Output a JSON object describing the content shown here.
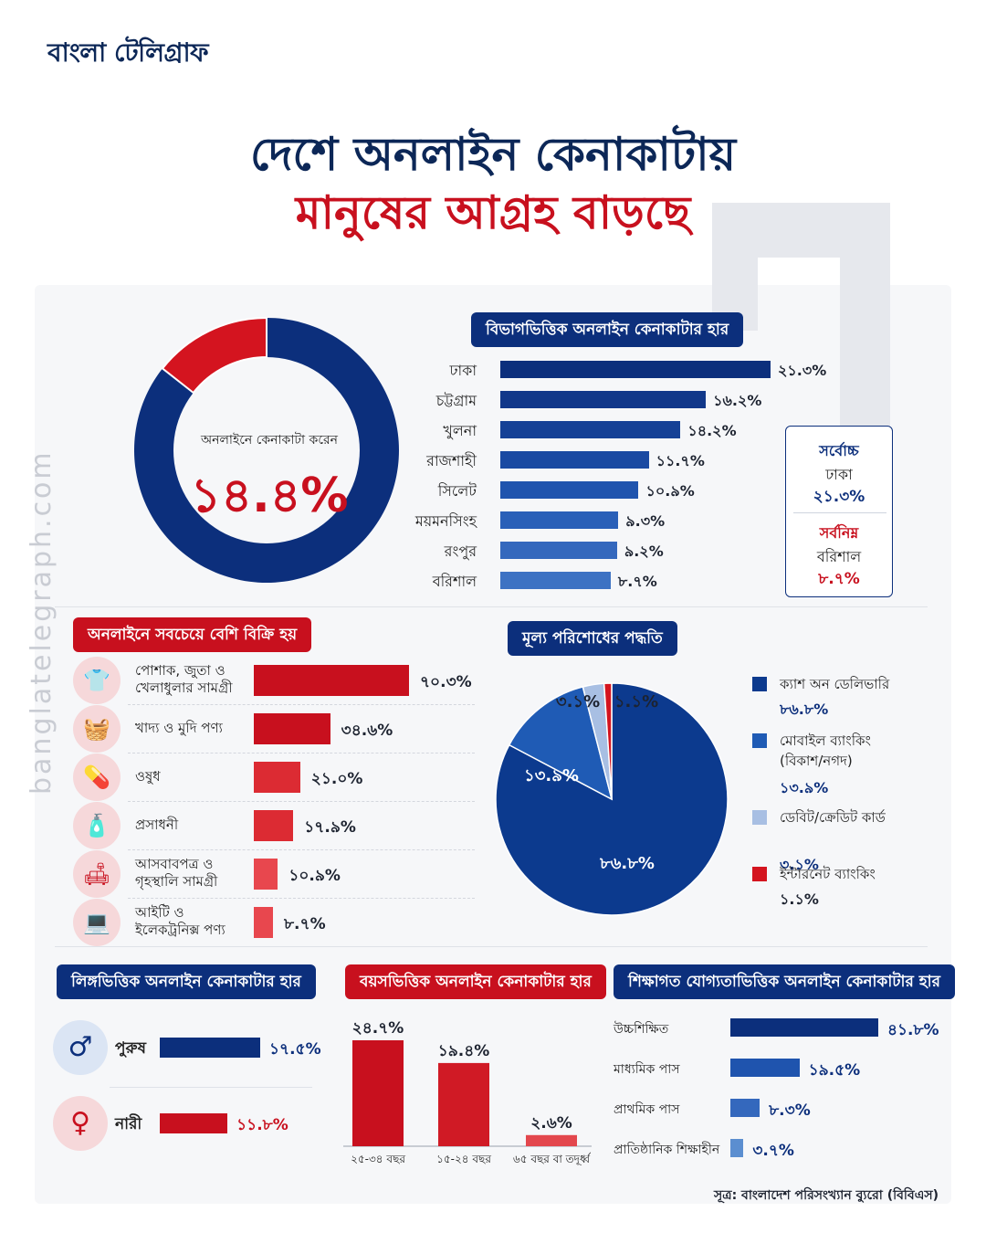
{
  "brand": {
    "logo": "বাংলা টেলিগ্রাফ",
    "watermark": "banglatelegraph.com"
  },
  "title": {
    "line1": "দেশে অনলাইন কেনাকাটায়",
    "line2": "মানুষের আগ্রহ বাড়ছে"
  },
  "colors": {
    "navy": "#0c2757",
    "blue": "#0c2f7c",
    "red": "#c8101e",
    "lightred": "#e8424a"
  },
  "overall": {
    "label": "অনলাইনে কেনাকাটা করেন",
    "value_text": "১৪.৪%",
    "value": 14.4
  },
  "division": {
    "title": "বিভাগভিত্তিক অনলাইন কেনাকাটার হার",
    "items": [
      {
        "name": "ঢাকা",
        "value": 21.3,
        "label": "২১.৩%"
      },
      {
        "name": "চট্টগ্রাম",
        "value": 16.2,
        "label": "১৬.২%"
      },
      {
        "name": "খুলনা",
        "value": 14.2,
        "label": "১৪.২%"
      },
      {
        "name": "রাজশাহী",
        "value": 11.7,
        "label": "১১.৭%"
      },
      {
        "name": "সিলেট",
        "value": 10.9,
        "label": "১০.৯%"
      },
      {
        "name": "ময়মনসিংহ",
        "value": 9.3,
        "label": "৯.৩%"
      },
      {
        "name": "রংপুর",
        "value": 9.2,
        "label": "৯.২%"
      },
      {
        "name": "বরিশাল",
        "value": 8.7,
        "label": "৮.৭%"
      }
    ],
    "box": {
      "high_label": "সর্বোচ্চ",
      "high_name": "ঢাকা",
      "high_value": "২১.৩%",
      "low_label": "সর্বনিম্ন",
      "low_name": "বরিশাল",
      "low_value": "৮.৭%"
    }
  },
  "products": {
    "title": "অনলাইনে সবচেয়ে বেশি বিক্রি হয়",
    "items": [
      {
        "name": "পোশাক, জুতা ও খেলাধুলার সামগ্রী",
        "icon": "clothing-icon",
        "value": 70.3,
        "label": "৭০.৩%"
      },
      {
        "name": "খাদ্য ও মুদি পণ্য",
        "icon": "basket-icon",
        "value": 34.6,
        "label": "৩৪.৬%"
      },
      {
        "name": "ওষুধ",
        "icon": "medicine-icon",
        "value": 21.0,
        "label": "২১.০%"
      },
      {
        "name": "প্রসাধনী",
        "icon": "cosmetics-icon",
        "value": 17.9,
        "label": "১৭.৯%"
      },
      {
        "name": "আসবাবপত্র ও গৃহস্থালি সামগ্রী",
        "icon": "sofa-icon",
        "value": 10.9,
        "label": "১০.৯%"
      },
      {
        "name": "আইটি ও ইলেকট্রনিক্স পণ্য",
        "icon": "computer-icon",
        "value": 8.7,
        "label": "৮.৭%"
      }
    ]
  },
  "payment": {
    "title": "মূল্য পরিশোধের পদ্ধতি",
    "items": [
      {
        "name": "ক্যাশ অন ডেলিভারি",
        "value": 86.8,
        "label": "৮৬.৮%",
        "color": "#0c3a8e"
      },
      {
        "name": "মোবাইল ব্যাংকিং (বিকাশ/নগদ)",
        "value": 13.9,
        "label": "১৩.৯%",
        "color": "#1f5bb5"
      },
      {
        "name": "ডেবিট/ক্রেডিট কার্ড",
        "value": 3.1,
        "label": "৩.১%",
        "color": "#a8bfe3"
      },
      {
        "name": "ইন্টারনেট ব্যাংকিং",
        "value": 1.1,
        "label": "১.১%",
        "color": "#d4141f"
      }
    ]
  },
  "gender": {
    "title": "লিঙ্গভিত্তিক অনলাইন কেনাকাটার হার",
    "items": [
      {
        "name": "পুরুষ",
        "value": 17.5,
        "label": "১৭.৫%",
        "icon": "male-icon"
      },
      {
        "name": "নারী",
        "value": 11.8,
        "label": "১১.৮%",
        "icon": "female-icon"
      }
    ]
  },
  "age": {
    "title": "বয়সভিত্তিক অনলাইন কেনাকাটার হার",
    "items": [
      {
        "name": "২৫-৩৪ বছর",
        "value": 24.7,
        "label": "২৪.৭%"
      },
      {
        "name": "১৫-২৪ বছর",
        "value": 19.4,
        "label": "১৯.৪%"
      },
      {
        "name": "৬৫ বছর বা তদূর্ধ্ব",
        "value": 2.6,
        "label": "২.৬%"
      }
    ]
  },
  "education": {
    "title": "শিক্ষাগত যোগ্যতাভিত্তিক অনলাইন কেনাকাটার হার",
    "items": [
      {
        "name": "উচ্চশিক্ষিত",
        "value": 41.8,
        "label": "৪১.৮%"
      },
      {
        "name": "মাধ্যমিক পাস",
        "value": 19.5,
        "label": "১৯.৫%"
      },
      {
        "name": "প্রাথমিক পাস",
        "value": 8.3,
        "label": "৮.৩%"
      },
      {
        "name": "প্রাতিষ্ঠানিক শিক্ষাহীন",
        "value": 3.7,
        "label": "৩.৭%"
      }
    ]
  },
  "source": "সূত্র: বাংলাদেশ পরিসংখ্যান ব্যুরো (বিবিএস)",
  "chart_data": [
    {
      "type": "pie",
      "title": "অনলাইনে কেনাকাটা করেন",
      "categories": [
        "অনলাইনে কেনাকাটা করেন"
      ],
      "values": [
        14.4
      ]
    },
    {
      "type": "bar",
      "title": "বিভাগভিত্তিক অনলাইন কেনাকাটার হার",
      "categories": [
        "ঢাকা",
        "চট্টগ্রাম",
        "খুলনা",
        "রাজশাহী",
        "সিলেট",
        "ময়মনসিংহ",
        "রংপুর",
        "বরিশাল"
      ],
      "values": [
        21.3,
        16.2,
        14.2,
        11.7,
        10.9,
        9.3,
        9.2,
        8.7
      ]
    },
    {
      "type": "bar",
      "title": "অনলাইনে সবচেয়ে বেশি বিক্রি হয়",
      "categories": [
        "পোশাক, জুতা ও খেলাধুলার সামগ্রী",
        "খাদ্য ও মুদি পণ্য",
        "ওষুধ",
        "প্রসাধনী",
        "আসবাবপত্র ও গৃহস্থালি সামগ্রী",
        "আইটি ও ইলেকট্রনিক্স পণ্য"
      ],
      "values": [
        70.3,
        34.6,
        21.0,
        17.9,
        10.9,
        8.7
      ]
    },
    {
      "type": "pie",
      "title": "মূল্য পরিশোধের পদ্ধতি",
      "categories": [
        "ক্যাশ অন ডেলিভারি",
        "মোবাইল ব্যাংকিং (বিকাশ/নগদ)",
        "ডেবিট/ক্রেডিট কার্ড",
        "ইন্টারনেট ব্যাংকিং"
      ],
      "values": [
        86.8,
        13.9,
        3.1,
        1.1
      ]
    },
    {
      "type": "bar",
      "title": "লিঙ্গভিত্তিক অনলাইন কেনাকাটার হার",
      "categories": [
        "পুরুষ",
        "নারী"
      ],
      "values": [
        17.5,
        11.8
      ]
    },
    {
      "type": "bar",
      "title": "বয়সভিত্তিক অনলাইন কেনাকাটার হার",
      "categories": [
        "২৫-৩৪ বছর",
        "১৫-২৪ বছর",
        "৬৫ বছর বা তদূর্ধ্ব"
      ],
      "values": [
        24.7,
        19.4,
        2.6
      ]
    },
    {
      "type": "bar",
      "title": "শিক্ষাগত যোগ্যতাভিত্তিক অনলাইন কেনাকাটার হার",
      "categories": [
        "উচ্চশিক্ষিত",
        "মাধ্যমিক পাস",
        "প্রাথমিক পাস",
        "প্রাতিষ্ঠানিক শিক্ষাহীন"
      ],
      "values": [
        41.8,
        19.5,
        8.3,
        3.7
      ]
    }
  ]
}
